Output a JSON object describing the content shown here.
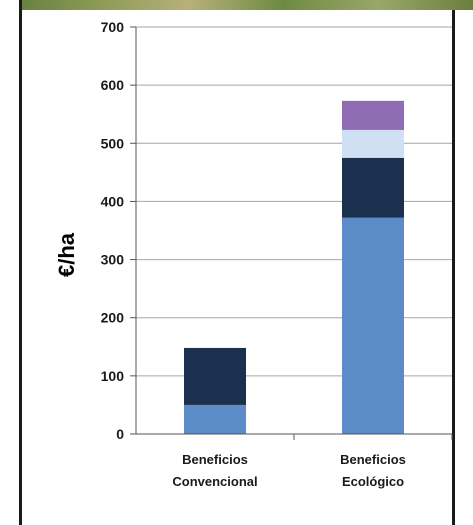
{
  "colors": {
    "series_1": "#5b8cc8",
    "series_2": "#1b2f4e",
    "series_3": "#cfdff4",
    "series_4": "#8f6bb3",
    "grid": "#a6a6a6",
    "axis": "#555555"
  },
  "chart_data": {
    "type": "bar",
    "stacked": true,
    "categories": [
      [
        "Beneficios",
        "Convencional"
      ],
      [
        "Beneficios",
        "Ecológico"
      ]
    ],
    "series": [
      {
        "values": [
          50,
          372
        ]
      },
      {
        "values": [
          98,
          103
        ]
      },
      {
        "values": [
          0,
          48
        ]
      },
      {
        "values": [
          0,
          50
        ]
      }
    ],
    "ylabel": "€/ha",
    "ylim": [
      0,
      700
    ],
    "yticks": [
      0,
      100,
      200,
      300,
      400,
      500,
      600,
      700
    ],
    "grid": true
  }
}
